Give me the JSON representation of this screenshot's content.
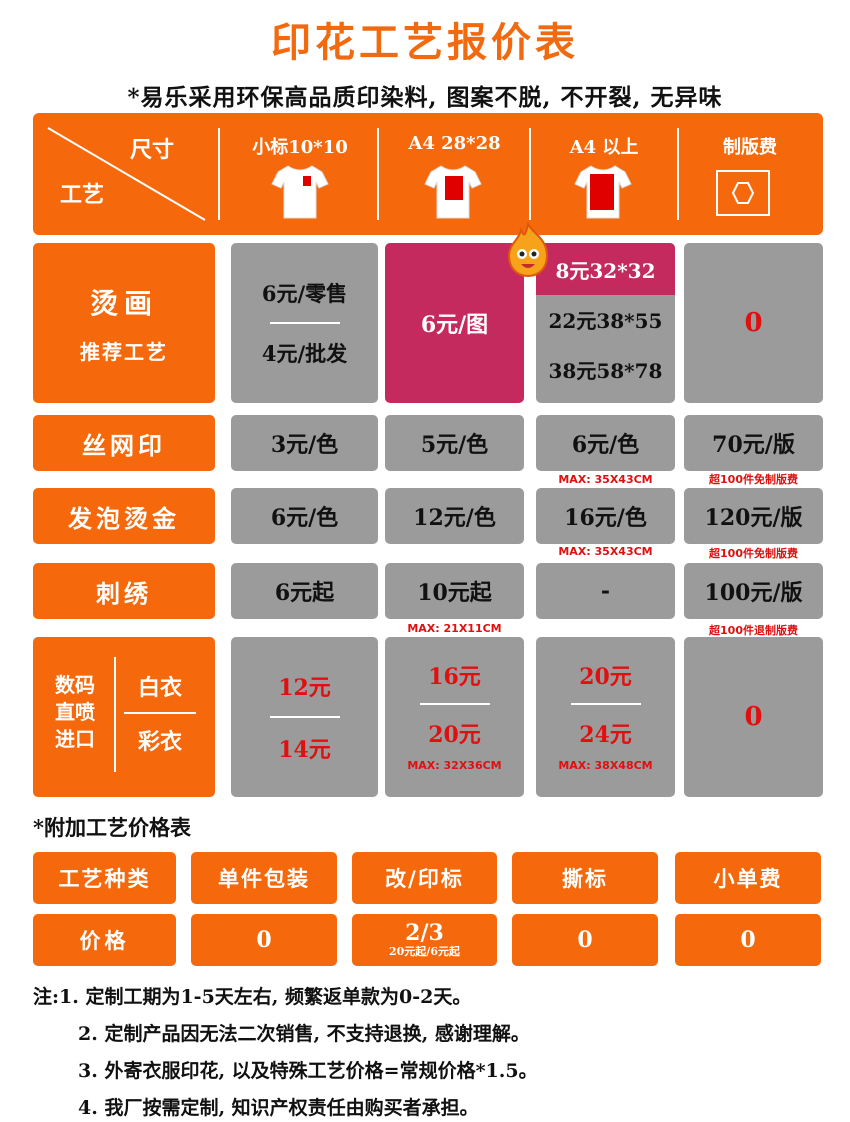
{
  "title": "印花工艺报价表",
  "subtitle": "*易乐采用环保高品质印染料, 图案不脱, 不开裂, 无异味",
  "header": {
    "size_label": "尺寸",
    "craft_label": "工艺",
    "columns": [
      "小标10*10",
      "A4 28*28",
      "A4 以上",
      "制版费"
    ]
  },
  "rows": {
    "tang_hua": {
      "name": "烫画",
      "sub": "推荐工艺",
      "small_retail": "6元/零售",
      "small_wholesale": "4元/批发",
      "a4": "6元/图",
      "large": [
        "8元32*32",
        "22元38*55",
        "38元58*78"
      ],
      "plate": "0"
    },
    "silk": {
      "name": "丝网印",
      "values": [
        "3元/色",
        "5元/色",
        "6元/色",
        "70元/版"
      ],
      "max_large": "MAX: 35X43CM",
      "plate_note": "超100件免制版费"
    },
    "foam": {
      "name": "发泡烫金",
      "values": [
        "6元/色",
        "12元/色",
        "16元/色",
        "120元/版"
      ],
      "max_large": "MAX: 35X43CM",
      "plate_note": "超100件免制版费"
    },
    "embroidery": {
      "name": "刺绣",
      "values": [
        "6元起",
        "10元起",
        "-",
        "100元/版"
      ],
      "max_a4": "MAX: 21X11CM",
      "plate_note": "超100件退制版费"
    },
    "digital": {
      "name_left": [
        "数码",
        "直喷",
        "进口"
      ],
      "name_white": "白衣",
      "name_color": "彩衣",
      "small": [
        "12元",
        "14元"
      ],
      "a4": [
        "16元",
        "20元"
      ],
      "a4_max": "MAX: 32X36CM",
      "large": [
        "20元",
        "24元"
      ],
      "large_max": "MAX: 38X48CM",
      "plate": "0"
    }
  },
  "extra": {
    "title": "*附加工艺价格表",
    "headers": [
      "工艺种类",
      "单件包装",
      "改/印标",
      "撕标",
      "小单费"
    ],
    "price_label": "价格",
    "prices": [
      "0",
      "2/3",
      "0",
      "0"
    ],
    "price_sub": "20元起/6元起"
  },
  "notes": [
    "注:1. 定制工期为1-5天左右, 频繁返单款为0-2天。",
    "2. 定制产品因无法二次销售, 不支持退换, 感谢理解。",
    "3. 外寄衣服印花, 以及特殊工艺价格=常规价格*1.5。",
    "4. 我厂按需定制, 知识产权责任由购买者承担。"
  ],
  "colors": {
    "orange": "#f5690c",
    "gray": "#9b9b9b",
    "pink": "#c42a5e",
    "red": "#e01010"
  },
  "icons": [
    "tshirt-small-icon",
    "tshirt-a4-icon",
    "tshirt-large-icon",
    "hexagon-plate-icon",
    "fire-mascot-icon"
  ]
}
